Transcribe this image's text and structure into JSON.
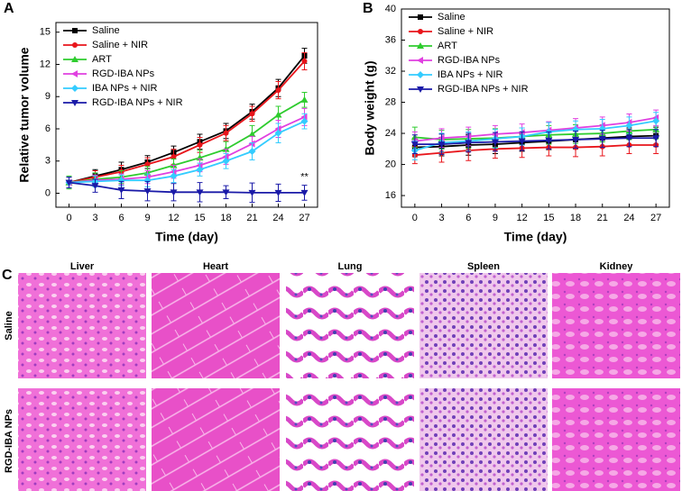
{
  "chart_data": [
    {
      "type": "line",
      "panel_label": "A",
      "x_label": "Time (day)",
      "y_label": "Relative tumor volume",
      "x": [
        0,
        3,
        6,
        9,
        12,
        15,
        18,
        21,
        24,
        27
      ],
      "xlim": [
        -1.5,
        28.5
      ],
      "xticks": [
        0,
        3,
        6,
        9,
        12,
        15,
        18,
        21,
        24,
        27
      ],
      "ylim": [
        -1.3,
        15.9
      ],
      "yticks": [
        0,
        3,
        6,
        9,
        12,
        15
      ],
      "legend": "upper left",
      "annotations": [
        {
          "text": "**",
          "x": 27,
          "y": 1.5
        }
      ],
      "series": [
        {
          "name": "Saline",
          "color": "#000000",
          "marker": "square",
          "values": [
            1,
            1.6,
            2.2,
            2.9,
            3.8,
            4.8,
            5.8,
            7.6,
            9.8,
            12.8
          ],
          "errors": [
            0.5,
            0.6,
            0.7,
            0.6,
            0.6,
            0.7,
            0.7,
            0.7,
            0.8,
            0.7
          ]
        },
        {
          "name": "Saline + NIR",
          "color": "#e8151b",
          "marker": "circle",
          "values": [
            1,
            1.5,
            2.0,
            2.7,
            3.4,
            4.5,
            5.6,
            7.4,
            9.6,
            12.3
          ],
          "errors": [
            0.5,
            0.6,
            0.6,
            0.6,
            0.7,
            0.7,
            0.7,
            0.7,
            0.8,
            0.8
          ]
        },
        {
          "name": "ART",
          "color": "#2ecc2e",
          "marker": "triangle-up",
          "values": [
            1,
            1.3,
            1.5,
            1.9,
            2.6,
            3.3,
            4.1,
            5.5,
            7.3,
            8.7
          ],
          "errors": [
            0.6,
            0.6,
            0.6,
            0.6,
            0.6,
            0.7,
            0.7,
            0.8,
            0.8,
            0.7
          ]
        },
        {
          "name": "RGD-IBA NPs",
          "color": "#e040e0",
          "marker": "triangle-left",
          "values": [
            1,
            1.2,
            1.3,
            1.5,
            2.0,
            2.6,
            3.4,
            4.6,
            6.0,
            7.1
          ],
          "errors": [
            0.5,
            0.5,
            0.5,
            0.6,
            0.6,
            0.6,
            0.7,
            0.7,
            0.8,
            0.8
          ]
        },
        {
          "name": "IBA NPs + NIR",
          "color": "#33ccff",
          "marker": "diamond",
          "values": [
            1,
            1.1,
            1.2,
            1.2,
            1.6,
            2.2,
            3.0,
            3.9,
            5.6,
            6.7
          ],
          "errors": [
            0.5,
            0.5,
            0.5,
            0.6,
            0.6,
            0.6,
            0.7,
            0.8,
            0.9,
            0.7
          ]
        },
        {
          "name": "RGD-IBA NPs + NIR",
          "color": "#1a1aa8",
          "marker": "triangle-down",
          "values": [
            1,
            0.7,
            0.3,
            0.2,
            0.1,
            0.1,
            0.1,
            0.05,
            0.05,
            0.05
          ],
          "errors": [
            0.5,
            0.6,
            0.8,
            0.9,
            0.8,
            0.9,
            0.6,
            0.9,
            0.8,
            0.7
          ]
        }
      ]
    },
    {
      "type": "line",
      "panel_label": "B",
      "x_label": "Time (day)",
      "y_label": "Body weight (g)",
      "x": [
        0,
        3,
        6,
        9,
        12,
        15,
        18,
        21,
        24,
        27
      ],
      "xlim": [
        -1.5,
        28.5
      ],
      "xticks": [
        0,
        3,
        6,
        9,
        12,
        15,
        18,
        21,
        24,
        27
      ],
      "ylim": [
        14.5,
        40
      ],
      "yticks": [
        16,
        20,
        24,
        28,
        32,
        36,
        40
      ],
      "legend": "upper left",
      "series": [
        {
          "name": "Saline",
          "color": "#000000",
          "marker": "square",
          "values": [
            22.2,
            22.3,
            22.5,
            22.6,
            22.8,
            23.0,
            23.2,
            23.4,
            23.6,
            23.7
          ],
          "errors": [
            1.2,
            1.2,
            1.3,
            1.2,
            1.1,
            1.1,
            1.2,
            1.2,
            1.1,
            1.1
          ]
        },
        {
          "name": "Saline + NIR",
          "color": "#e8151b",
          "marker": "circle",
          "values": [
            21.2,
            21.5,
            21.8,
            22.0,
            22.1,
            22.2,
            22.2,
            22.3,
            22.5,
            22.5
          ],
          "errors": [
            1.1,
            1.2,
            1.3,
            1.2,
            1.2,
            1.1,
            1.2,
            1.2,
            1.1,
            1.1
          ]
        },
        {
          "name": "ART",
          "color": "#2ecc2e",
          "marker": "triangle-up",
          "values": [
            23.5,
            23.2,
            23.3,
            23.4,
            23.6,
            23.8,
            23.9,
            24.0,
            24.3,
            24.5
          ],
          "errors": [
            1.3,
            1.2,
            1.2,
            1.2,
            1.1,
            1.2,
            1.2,
            1.1,
            1.1,
            1.2
          ]
        },
        {
          "name": "RGD-IBA NPs",
          "color": "#e040e0",
          "marker": "triangle-left",
          "values": [
            23.0,
            23.4,
            23.6,
            23.9,
            24.1,
            24.4,
            24.7,
            25.0,
            25.4,
            26.0
          ],
          "errors": [
            1.2,
            1.2,
            1.2,
            1.1,
            1.1,
            1.1,
            1.2,
            1.1,
            1.1,
            1.0
          ]
        },
        {
          "name": "IBA NPs + NIR",
          "color": "#33ccff",
          "marker": "diamond",
          "values": [
            21.8,
            22.8,
            23.0,
            23.3,
            23.6,
            24.2,
            24.5,
            24.6,
            25.0,
            25.6
          ],
          "errors": [
            1.2,
            1.2,
            1.2,
            1.2,
            1.1,
            1.2,
            1.1,
            1.2,
            1.1,
            1.1
          ]
        },
        {
          "name": "RGD-IBA NPs + NIR",
          "color": "#1a1aa8",
          "marker": "triangle-down",
          "values": [
            22.6,
            22.6,
            22.8,
            22.9,
            23.0,
            23.1,
            23.2,
            23.3,
            23.4,
            23.4
          ],
          "errors": [
            1.2,
            1.3,
            1.2,
            1.2,
            1.2,
            1.1,
            1.1,
            1.1,
            1.1,
            1.1
          ]
        }
      ]
    }
  ],
  "panel_c": {
    "label": "C",
    "columns": [
      "Liver",
      "Heart",
      "Lung",
      "Spleen",
      "Kidney"
    ],
    "rows": [
      "Saline",
      "RGD-IBA NPs"
    ]
  }
}
